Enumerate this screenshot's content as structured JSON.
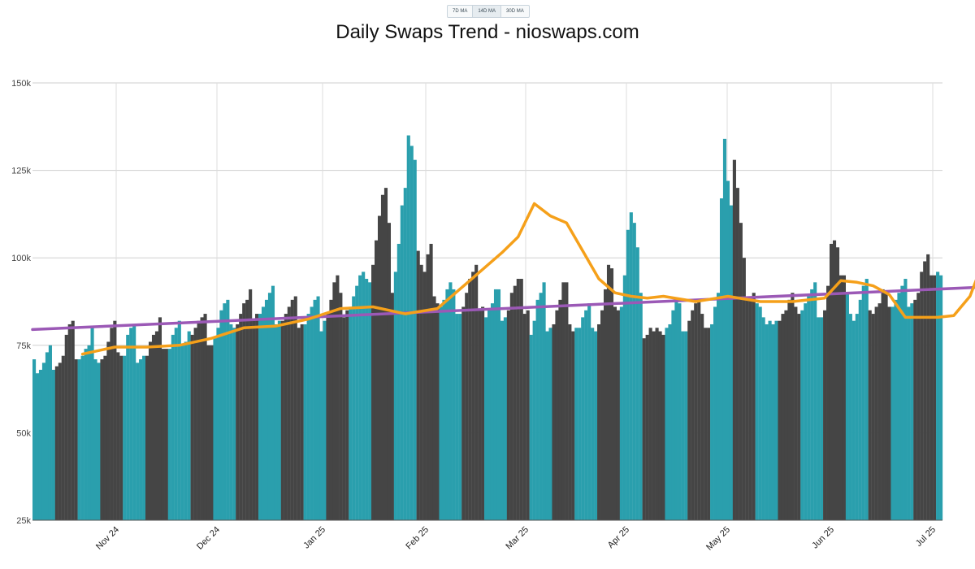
{
  "controls": {
    "ma_buttons": [
      {
        "label": "7D MA"
      },
      {
        "label": "14D MA"
      },
      {
        "label": "30D MA"
      }
    ]
  },
  "chart_data": {
    "type": "bar",
    "title": "Daily Swaps Trend - nioswaps.com",
    "xlabel": "",
    "ylabel": "",
    "ylim": [
      25000,
      150000
    ],
    "y_ticks": [
      25000,
      50000,
      75000,
      100000,
      125000,
      150000
    ],
    "y_tick_labels": [
      "25k",
      "50k",
      "75k",
      "100k",
      "125k",
      "150k"
    ],
    "x_tick_labels": [
      "Nov 24",
      "Dec 24",
      "Jan 25",
      "Feb 25",
      "Mar 25",
      "Apr 25",
      "May 25",
      "Jun 25",
      "Jul 25"
    ],
    "grid": true,
    "colors": {
      "week_a": "#2a9fad",
      "week_b": "#454545",
      "moving_average": "#f5a01a",
      "trend": "#9b59b6"
    },
    "series": [
      {
        "type": "bar",
        "values_k": [
          71,
          67,
          68,
          70,
          73,
          75,
          68,
          69,
          70,
          72,
          78,
          81,
          82,
          71,
          71,
          72,
          74,
          75,
          80,
          71,
          70,
          71,
          72,
          76,
          80,
          82,
          73,
          72,
          72,
          78,
          80,
          81,
          70,
          71,
          72,
          72,
          76,
          78,
          79,
          83,
          74,
          74,
          74,
          78,
          80,
          82,
          75,
          76,
          79,
          78,
          80,
          82,
          83,
          84,
          75,
          75,
          77,
          80,
          85,
          87,
          88,
          81,
          80,
          81,
          84,
          87,
          88,
          91,
          82,
          84,
          84,
          86,
          88,
          90,
          92,
          81,
          82,
          82,
          84,
          86,
          88,
          89,
          80,
          81,
          81,
          84,
          86,
          88,
          89,
          79,
          82,
          84,
          88,
          93,
          95,
          90,
          83,
          85,
          86,
          89,
          92,
          95,
          96,
          94,
          93,
          98,
          105,
          112,
          118,
          120,
          110,
          90,
          96,
          104,
          115,
          120,
          135,
          132,
          128,
          102,
          98,
          96,
          101,
          104,
          89,
          87,
          86,
          88,
          91,
          93,
          91,
          84,
          84,
          86,
          90,
          94,
          96,
          98,
          85,
          86,
          83,
          85,
          87,
          91,
          91,
          82,
          83,
          85,
          90,
          92,
          94,
          94,
          84,
          85,
          78,
          82,
          88,
          90,
          93,
          79,
          80,
          81,
          85,
          88,
          93,
          93,
          81,
          79,
          80,
          80,
          83,
          85,
          87,
          80,
          79,
          81,
          85,
          91,
          98,
          97,
          86,
          85,
          86,
          95,
          108,
          113,
          110,
          103,
          90,
          77,
          78,
          80,
          79,
          80,
          79,
          78,
          80,
          81,
          85,
          88,
          87,
          79,
          79,
          82,
          85,
          87,
          88,
          84,
          80,
          80,
          81,
          86,
          90,
          117,
          134,
          122,
          115,
          128,
          120,
          110,
          100,
          88,
          88,
          90,
          87,
          86,
          83,
          81,
          82,
          81,
          82,
          82,
          84,
          85,
          88,
          90,
          86,
          84,
          85,
          87,
          89,
          91,
          93,
          83,
          83,
          85,
          92,
          104,
          105,
          103,
          95,
          95,
          90,
          84,
          82,
          84,
          88,
          92,
          94,
          85,
          84,
          86,
          87,
          91,
          90,
          86,
          86,
          88,
          90,
          92,
          94,
          86,
          87,
          88,
          90,
          96,
          99,
          101,
          95,
          95,
          96,
          95
        ]
      },
      {
        "name": "",
        "type": "line",
        "x_day": [
          15,
          25,
          35,
          45,
          55,
          65,
          75,
          85,
          95,
          105,
          115,
          125,
          135,
          145,
          150,
          155,
          160,
          165,
          170,
          175,
          180,
          185,
          190,
          195,
          205,
          215,
          225,
          235,
          245,
          250,
          255,
          260,
          265,
          270,
          275,
          280,
          285,
          290,
          295,
          300,
          305,
          310,
          315,
          320,
          325,
          330,
          335,
          340,
          345,
          350,
          355,
          360,
          365,
          375,
          385,
          390,
          395,
          400
        ],
        "values_k": [
          72.5,
          74.5,
          74.5,
          75,
          77,
          80,
          80.5,
          82.5,
          85.5,
          86,
          84,
          85.5,
          93.5,
          101.5,
          106,
          115.5,
          112,
          110,
          102,
          94,
          90,
          89,
          88.5,
          89,
          87.5,
          89,
          87.5,
          87.5,
          88.5,
          93.5,
          93,
          92,
          89.5,
          83,
          83,
          83,
          83.5,
          89,
          101,
          101.5,
          102,
          103,
          102.5,
          92,
          86,
          86,
          86.5,
          87,
          90.5,
          91,
          90.5,
          90.5,
          90,
          88,
          89.5,
          90.5,
          92,
          94
        ]
      },
      {
        "name": "",
        "type": "trend",
        "x_day": [
          0,
          400
        ],
        "values_k": [
          79.5,
          96
        ]
      }
    ]
  }
}
